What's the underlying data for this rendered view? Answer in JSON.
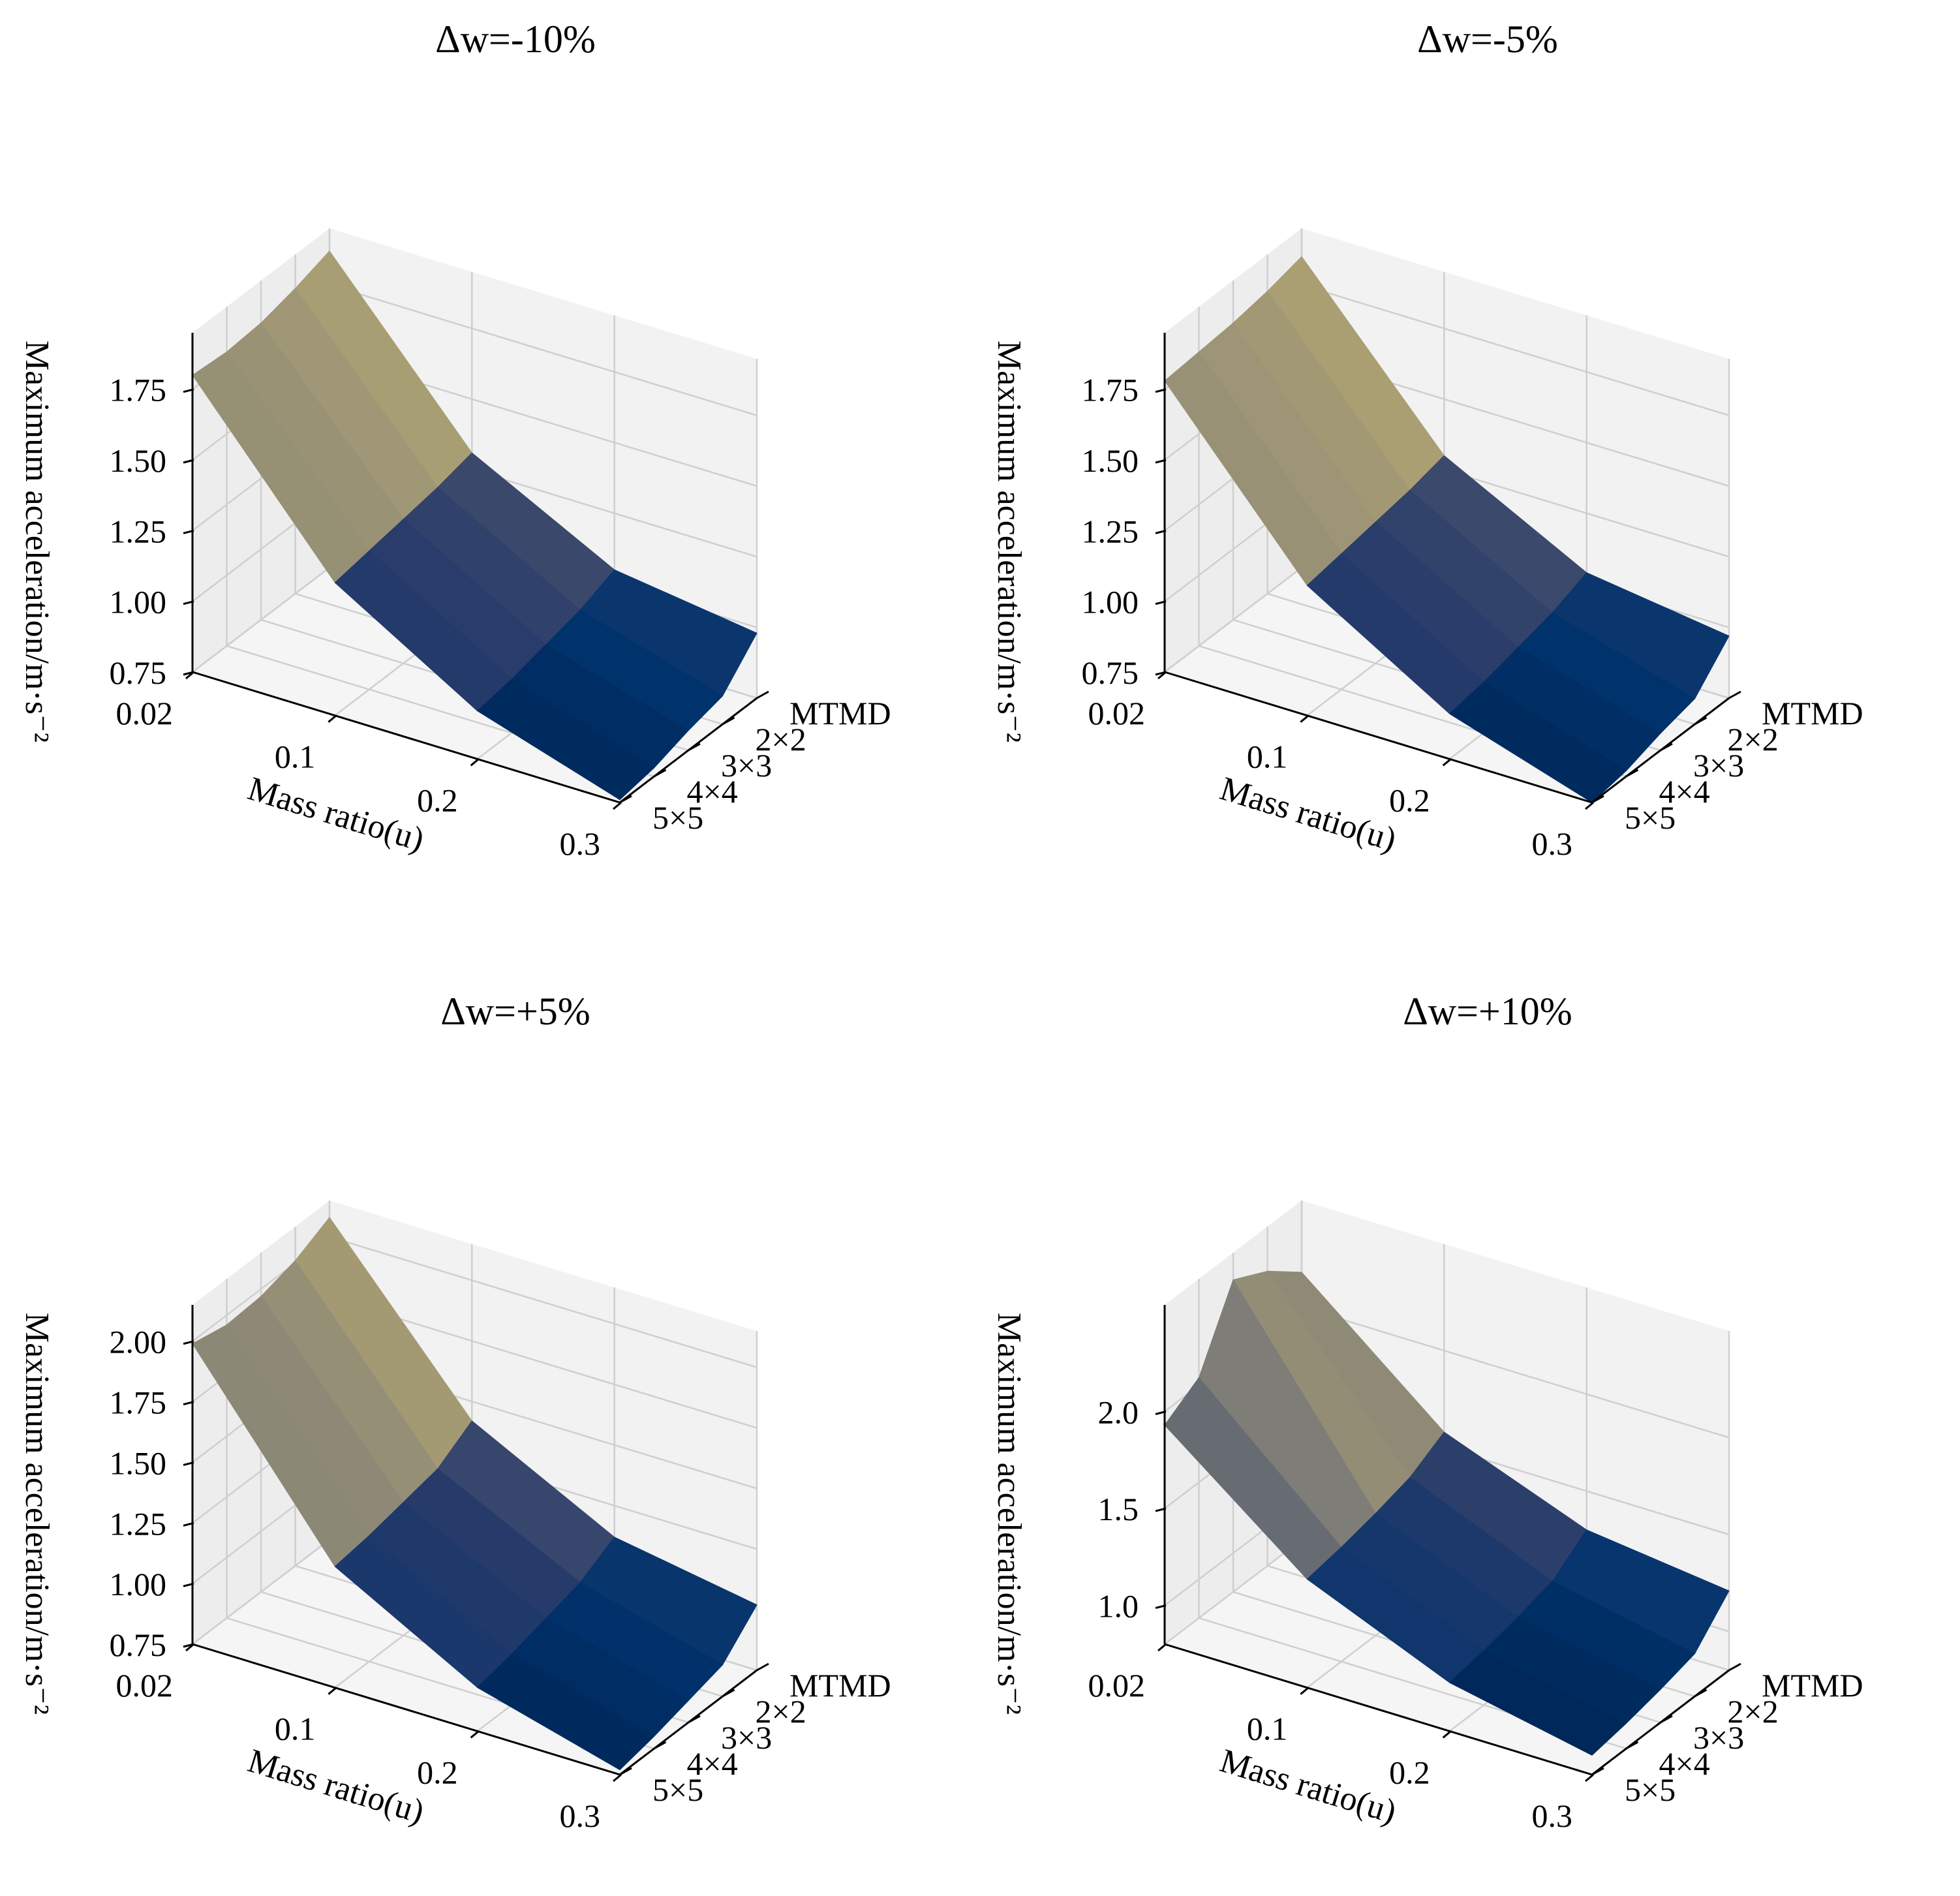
{
  "figure": {
    "description_free": true
  },
  "chart_data": [
    {
      "type": "surface3d",
      "title": "Δw=-10%",
      "xlabel": "Mass ratio(u)",
      "ylabel": "",
      "zlabel": "Maximum acceleration/m·s⁻²",
      "x_ticks": [
        "0.02",
        "0.1",
        "0.2",
        "0.3"
      ],
      "y_ticks": [
        "MTMD",
        "2×2",
        "3×3",
        "4×4",
        "5×5"
      ],
      "z_ticks": [
        "0.75",
        "1.00",
        "1.25",
        "1.50",
        "1.75"
      ],
      "zlim": [
        0.75,
        1.95
      ],
      "z": [
        [
          1.87,
          1.83,
          1.8,
          1.79,
          1.8
        ],
        [
          1.31,
          1.28,
          1.26,
          1.24,
          1.22
        ],
        [
          1.05,
          1.0,
          0.97,
          0.94,
          0.92
        ],
        [
          0.98,
          0.85,
          0.82,
          0.78,
          0.76
        ]
      ]
    },
    {
      "type": "surface3d",
      "title": "Δw=-5%",
      "xlabel": "Mass ratio(u)",
      "ylabel": "",
      "zlabel": "Maximum acceleration/m·s⁻²",
      "x_ticks": [
        "0.02",
        "0.1",
        "0.2",
        "0.3"
      ],
      "y_ticks": [
        "MTMD",
        "2×2",
        "3×3",
        "4×4",
        "5×5"
      ],
      "z_ticks": [
        "0.75",
        "1.00",
        "1.25",
        "1.50",
        "1.75"
      ],
      "zlim": [
        0.75,
        1.95
      ],
      "z": [
        [
          1.85,
          1.82,
          1.8,
          1.79,
          1.78
        ],
        [
          1.3,
          1.27,
          1.25,
          1.23,
          1.21
        ],
        [
          1.04,
          0.99,
          0.96,
          0.93,
          0.91
        ],
        [
          0.97,
          0.84,
          0.81,
          0.77,
          0.75
        ]
      ]
    },
    {
      "type": "surface3d",
      "title": "Δw=+5%",
      "xlabel": "Mass ratio(u)",
      "ylabel": "",
      "zlabel": "Maximum acceleration/m·s⁻²",
      "x_ticks": [
        "0.02",
        "0.1",
        "0.2",
        "0.3"
      ],
      "y_ticks": [
        "MTMD",
        "2×2",
        "3×3",
        "4×4",
        "5×5"
      ],
      "z_ticks": [
        "0.75",
        "1.00",
        "1.25",
        "1.50",
        "1.75",
        "2.00"
      ],
      "zlim": [
        0.75,
        2.15
      ],
      "z": [
        [
          2.08,
          2.01,
          1.97,
          1.96,
          1.99
        ],
        [
          1.42,
          1.33,
          1.3,
          1.27,
          1.25
        ],
        [
          1.12,
          1.04,
          1.0,
          0.96,
          0.93
        ],
        [
          1.02,
          0.88,
          0.84,
          0.8,
          0.77
        ]
      ]
    },
    {
      "type": "surface3d",
      "title": "Δw=+10%",
      "xlabel": "Mass ratio(u)",
      "ylabel": "",
      "zlabel": "Maximum acceleration/m·s⁻²",
      "x_ticks": [
        "0.02",
        "0.1",
        "0.2",
        "0.3"
      ],
      "y_ticks": [
        "MTMD",
        "2×2",
        "3×3",
        "4×4",
        "5×5"
      ],
      "z_ticks": [
        "1.0",
        "1.5",
        "2.0"
      ],
      "zlim": [
        0.8,
        2.55
      ],
      "z": [
        [
          2.18,
          2.32,
          2.41,
          2.04,
          1.93
        ],
        [
          1.58,
          1.48,
          1.43,
          1.39,
          1.36
        ],
        [
          1.3,
          1.17,
          1.12,
          1.08,
          1.05
        ],
        [
          1.21,
          1.02,
          0.97,
          0.93,
          0.9
        ]
      ]
    }
  ]
}
